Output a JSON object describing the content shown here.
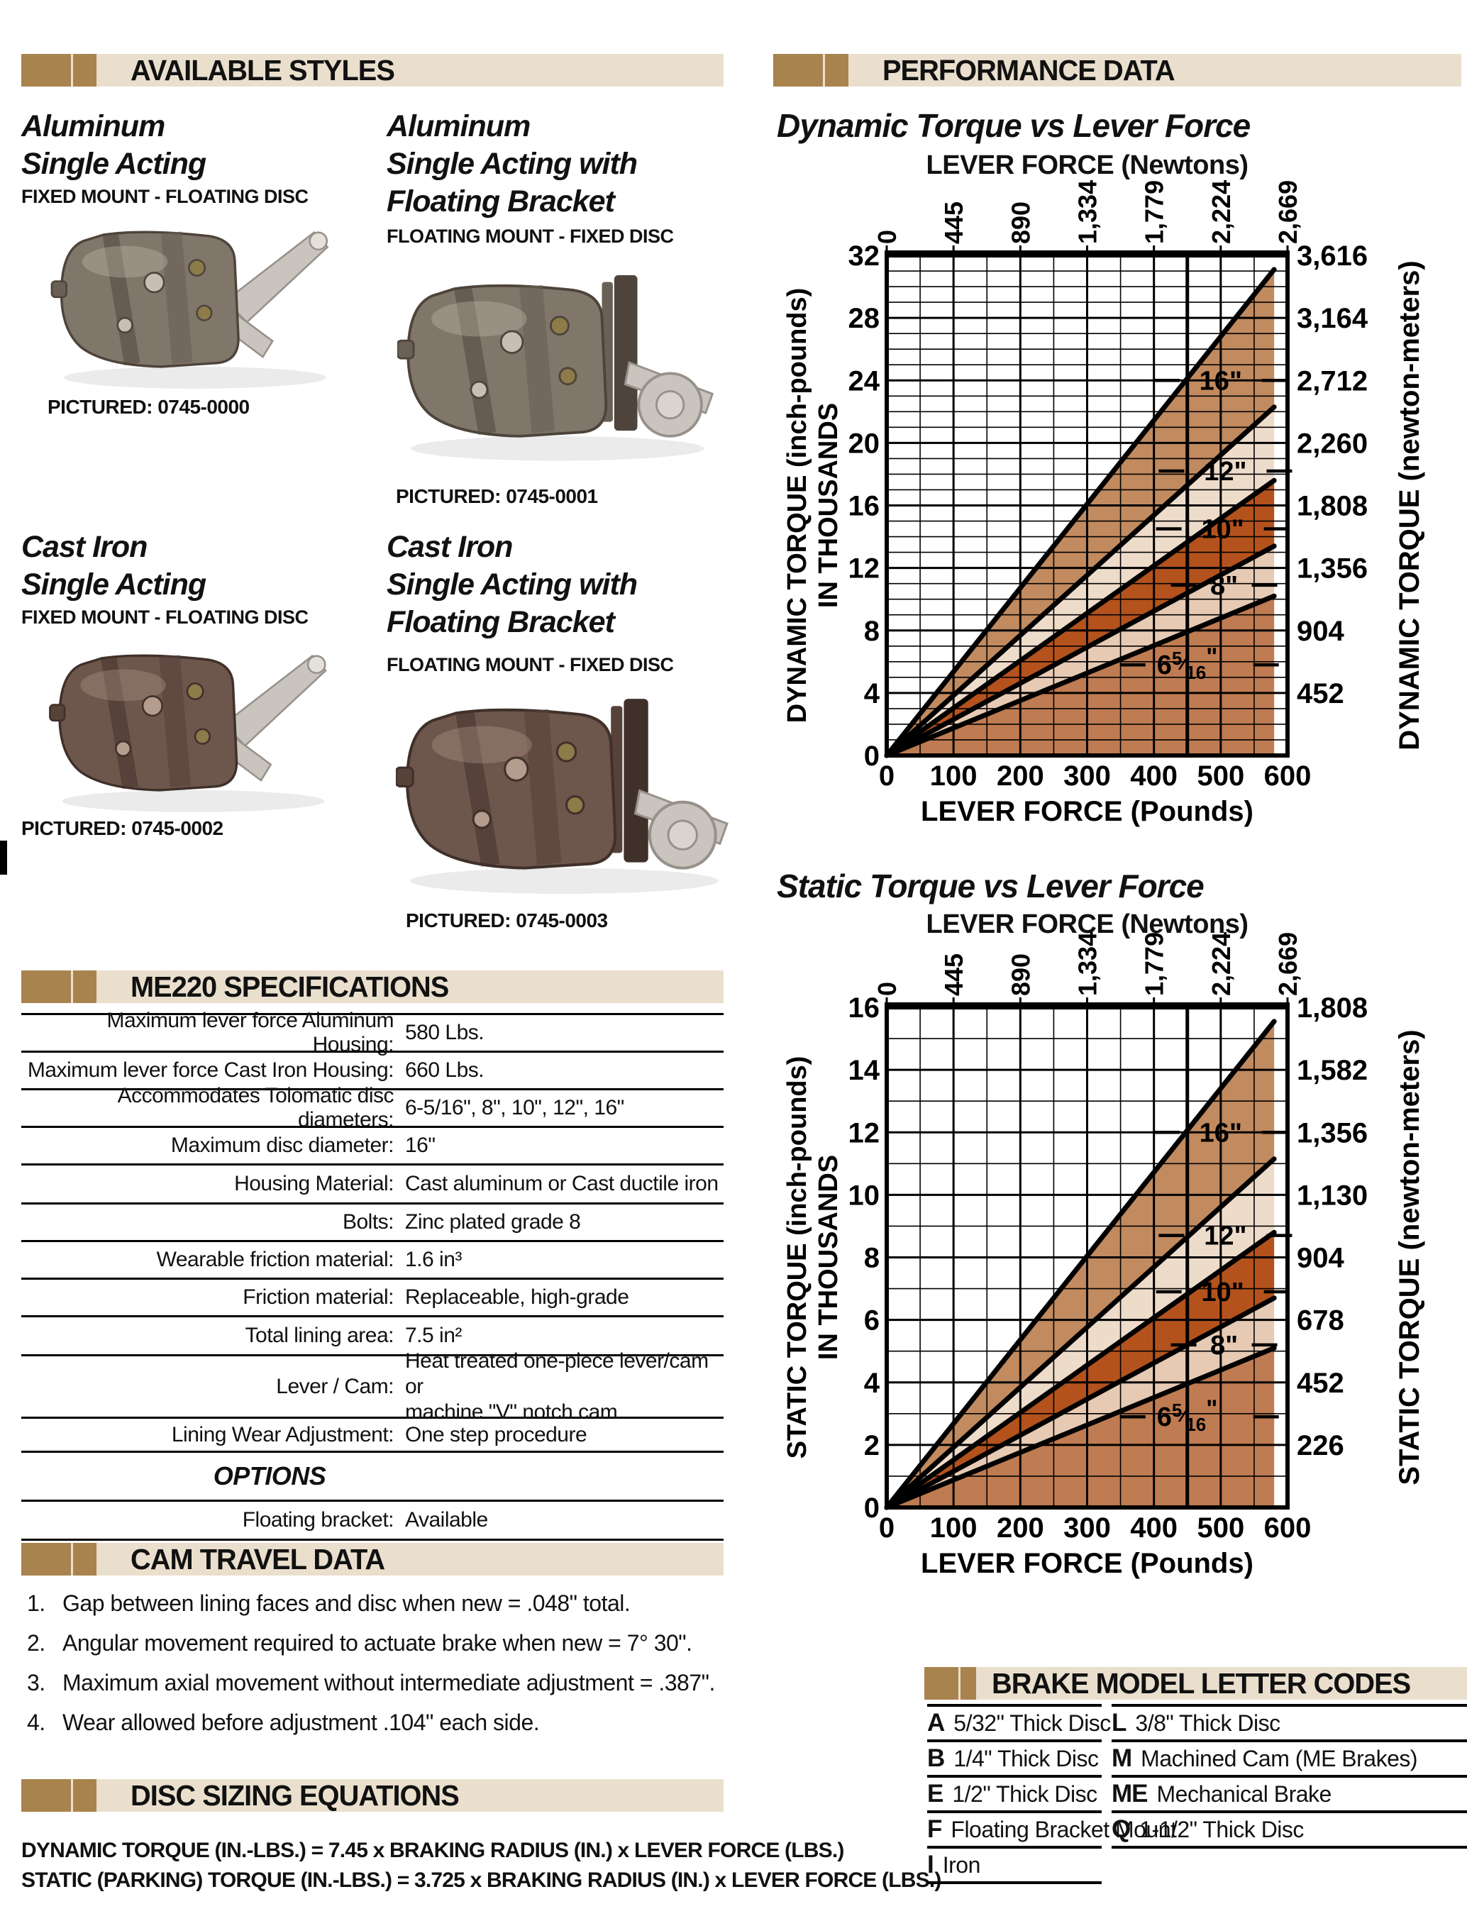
{
  "colors": {
    "gold": "#a9834d",
    "beige": "#eadfcd",
    "text": "#111111",
    "band_tan": "#c18a5f",
    "band_cream": "#eedccb",
    "band_rust": "#b4521d",
    "band_cream2": "#e6cab4",
    "band_brown": "#bf7b51"
  },
  "available_styles": {
    "header": "AVAILABLE STYLES",
    "products": [
      {
        "title_lines": [
          "Aluminum",
          "Single Acting"
        ],
        "subtitle": "FIXED MOUNT - FLOATING DISC",
        "caption": "PICTURED: 0745-0000",
        "variant": "aluminum"
      },
      {
        "title_lines": [
          "Aluminum",
          "Single Acting with",
          "Floating Bracket"
        ],
        "subtitle": "FLOATING MOUNT - FIXED DISC",
        "caption": "PICTURED: 0745-0001",
        "variant": "aluminum-bracket"
      },
      {
        "title_lines": [
          "Cast Iron",
          "Single Acting"
        ],
        "subtitle": "FIXED MOUNT - FLOATING DISC",
        "caption": "PICTURED: 0745-0002",
        "variant": "iron"
      },
      {
        "title_lines": [
          "Cast Iron",
          "Single Acting with",
          "Floating Bracket"
        ],
        "subtitle": "FLOATING MOUNT - FIXED DISC",
        "caption": "PICTURED: 0745-0003",
        "variant": "iron-bracket"
      }
    ]
  },
  "specifications": {
    "header": "ME220 SPECIFICATIONS",
    "rows": [
      {
        "label": "Maximum lever force Aluminum Housing:",
        "value": "580 Lbs."
      },
      {
        "label": "Maximum lever force Cast Iron Housing:",
        "value": "660 Lbs."
      },
      {
        "label": "Accommodates Tolomatic disc diameters:",
        "value": "6-5/16\",  8\",  10\", 12\", 16\""
      },
      {
        "label": "Maximum disc diameter:",
        "value": "16\""
      },
      {
        "label": "Housing Material:",
        "value": "Cast aluminum or Cast ductile iron"
      },
      {
        "label": "Bolts:",
        "value": "Zinc plated grade 8"
      },
      {
        "label": "Wearable friction material:",
        "value": "1.6 in³"
      },
      {
        "label": "Friction material:",
        "value": "Replaceable, high-grade"
      },
      {
        "label": "Total lining area:",
        "value": "7.5 in²"
      },
      {
        "label": "Lever / Cam:",
        "value_lines": [
          "Heat treated one-piece lever/cam or",
          "machine \"V\" notch cam"
        ]
      },
      {
        "label": "Lining Wear Adjustment:",
        "value": "One step procedure"
      }
    ],
    "options_header": "OPTIONS",
    "options_rows": [
      {
        "label": "Floating bracket:",
        "value": "Available"
      }
    ]
  },
  "cam_travel": {
    "header": "CAM TRAVEL DATA",
    "items": [
      "Gap between lining faces and disc when new = .048\" total.",
      "Angular movement required to actuate brake when new = 7° 30\".",
      "Maximum axial movement without intermediate adjustment = .387\".",
      "Wear allowed before adjustment .104\" each side."
    ]
  },
  "disc_sizing": {
    "header": "DISC SIZING EQUATIONS",
    "equations": [
      "DYNAMIC TORQUE (IN.-LBS.) = 7.45 x BRAKING RADIUS (IN.) x LEVER FORCE (LBS.)",
      "STATIC (PARKING) TORQUE (IN.-LBS.) = 3.725 x BRAKING RADIUS (IN.) x LEVER FORCE (LBS.)"
    ]
  },
  "performance": {
    "header": "PERFORMANCE DATA"
  },
  "chart_data": [
    {
      "type": "line",
      "title": "Dynamic Torque vs Lever Force",
      "x_axis_top": {
        "label": "LEVER FORCE (Newtons)",
        "ticks": [
          "0",
          "445",
          "890",
          "1,334",
          "1,779",
          "2,224",
          "2,669"
        ]
      },
      "x_axis_bottom": {
        "label": "LEVER FORCE (Pounds)",
        "ticks": [
          "0",
          "100",
          "200",
          "300",
          "400",
          "500",
          "600"
        ],
        "range": [
          0,
          600
        ]
      },
      "y_axis_left": {
        "title_lines": [
          "DYNAMIC TORQUE (inch-pounds)",
          "IN THOUSANDS"
        ],
        "ticks": [
          "32",
          "28",
          "24",
          "20",
          "16",
          "12",
          "8",
          "4",
          "0"
        ],
        "range": [
          0,
          32
        ],
        "major": 4,
        "minor": 1
      },
      "y_axis_right": {
        "title": "DYNAMIC TORQUE (newton-meters)",
        "ticks": [
          "3,616",
          "3,164",
          "2,712",
          "2,260",
          "1,808",
          "1,356",
          "904",
          "452"
        ]
      },
      "x_end_lbs": 580,
      "series": [
        {
          "name": "16\"",
          "lbs": [
            0,
            580
          ],
          "torque_thousands": [
            0,
            31.1
          ],
          "label": {
            "x": 500,
            "y": 24
          }
        },
        {
          "name": "12\"",
          "lbs": [
            0,
            580
          ],
          "torque_thousands": [
            0,
            22.3
          ],
          "label": {
            "x": 507,
            "y": 18.2
          }
        },
        {
          "name": "10\"",
          "lbs": [
            0,
            580
          ],
          "torque_thousands": [
            0,
            17.6
          ],
          "label": {
            "x": 503,
            "y": 14.5
          }
        },
        {
          "name": "8\"",
          "lbs": [
            0,
            580
          ],
          "torque_thousands": [
            0,
            13.4
          ],
          "label": {
            "x": 505,
            "y": 10.9
          }
        },
        {
          "name": "6 5/16\"",
          "fraction": {
            "whole": "6",
            "num": "5",
            "den": "16"
          },
          "lbs": [
            0,
            580
          ],
          "torque_thousands": [
            0,
            10.2
          ],
          "label": {
            "x": 468,
            "y": 5.8
          }
        }
      ],
      "band_colors": [
        "#c18a5f",
        "#eedccb",
        "#b4521d",
        "#e6cab4",
        "#bf7b51"
      ],
      "grid": {
        "x_minor": 50,
        "x_major": 100,
        "x_heavy": 450
      }
    },
    {
      "type": "line",
      "title": "Static Torque vs Lever Force",
      "x_axis_top": {
        "label": "LEVER FORCE (Newtons)",
        "ticks": [
          "0",
          "445",
          "890",
          "1,334",
          "1,779",
          "2,224",
          "2,669"
        ]
      },
      "x_axis_bottom": {
        "label": "LEVER FORCE (Pounds)",
        "ticks": [
          "0",
          "100",
          "200",
          "300",
          "400",
          "500",
          "600"
        ],
        "range": [
          0,
          600
        ]
      },
      "y_axis_left": {
        "title_lines": [
          "STATIC TORQUE (inch-pounds)",
          "IN THOUSANDS"
        ],
        "ticks": [
          "16",
          "14",
          "12",
          "10",
          "8",
          "6",
          "4",
          "2",
          "0"
        ],
        "range": [
          0,
          16
        ],
        "major": 2,
        "minor": 1
      },
      "y_axis_right": {
        "title": "STATIC TORQUE (newton-meters)",
        "ticks": [
          "1,808",
          "1,582",
          "1,356",
          "1,130",
          "904",
          "678",
          "452",
          "226"
        ]
      },
      "x_end_lbs": 580,
      "series": [
        {
          "name": "16\"",
          "lbs": [
            0,
            580
          ],
          "torque_thousands": [
            0,
            15.55
          ],
          "label": {
            "x": 500,
            "y": 12
          }
        },
        {
          "name": "12\"",
          "lbs": [
            0,
            580
          ],
          "torque_thousands": [
            0,
            11.15
          ],
          "label": {
            "x": 507,
            "y": 8.7
          }
        },
        {
          "name": "10\"",
          "lbs": [
            0,
            580
          ],
          "torque_thousands": [
            0,
            8.8
          ],
          "label": {
            "x": 503,
            "y": 6.9
          }
        },
        {
          "name": "8\"",
          "lbs": [
            0,
            580
          ],
          "torque_thousands": [
            0,
            6.7
          ],
          "label": {
            "x": 505,
            "y": 5.2
          }
        },
        {
          "name": "6 5/16\"",
          "fraction": {
            "whole": "6",
            "num": "5",
            "den": "16"
          },
          "lbs": [
            0,
            580
          ],
          "torque_thousands": [
            0,
            5.1
          ],
          "label": {
            "x": 468,
            "y": 2.9
          }
        }
      ],
      "band_colors": [
        "#c18a5f",
        "#eedccb",
        "#b4521d",
        "#e6cab4",
        "#bf7b51"
      ],
      "grid": {
        "x_minor": 50,
        "x_major": 100,
        "x_heavy": 450
      }
    }
  ],
  "brake_codes": {
    "header": "BRAKE MODEL LETTER CODES",
    "left": [
      {
        "code": "A",
        "desc": "5/32\" Thick Disc"
      },
      {
        "code": "B",
        "desc": "1/4\" Thick Disc"
      },
      {
        "code": "E",
        "desc": "1/2\" Thick Disc"
      },
      {
        "code": "F",
        "desc": "Floating Bracket Mount"
      },
      {
        "code": "I",
        "desc": "Iron"
      }
    ],
    "right": [
      {
        "code": "L",
        "desc": "3/8\" Thick Disc"
      },
      {
        "code": "M",
        "desc": "Machined Cam (ME Brakes)"
      },
      {
        "code": "ME",
        "desc": "Mechanical Brake"
      },
      {
        "code": "Q",
        "desc": "1-1/2\" Thick Disc"
      }
    ]
  }
}
